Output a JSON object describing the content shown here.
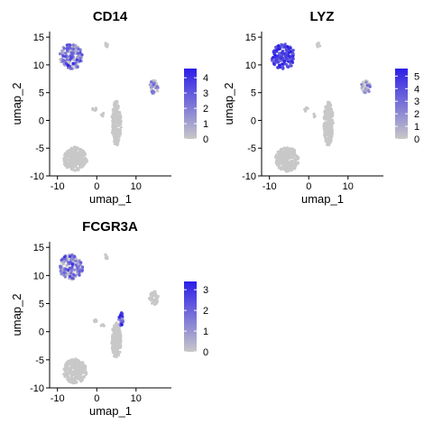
{
  "chart_data": [
    {
      "type": "scatter",
      "title": "CD14",
      "xlabel": "umap_1",
      "ylabel": "umap_2",
      "xlim": [
        -12,
        19
      ],
      "ylim": [
        -10,
        16
      ],
      "x_ticks": [
        -10,
        0,
        10
      ],
      "x_tick_labels": [
        "-10",
        "0",
        "10"
      ],
      "y_ticks": [
        -10,
        -5,
        0,
        5,
        10,
        15
      ],
      "y_tick_labels": [
        "-10",
        "-5",
        "0",
        "5",
        "10",
        "15"
      ],
      "color_scale": {
        "low": "#c8c8c8",
        "high": "#2b1ee8",
        "min": 0,
        "max": 4.6
      },
      "legend": {
        "position": "right",
        "ticks": [
          0,
          1,
          2,
          3,
          4
        ],
        "labels": [
          "0",
          "1",
          "2",
          "3",
          "4"
        ]
      },
      "clusters": [
        {
          "cx": -6.5,
          "cy": 11.5,
          "rx": 3.0,
          "ry": 2.3,
          "n": 170,
          "expr_mean": 1.8,
          "expr_sd": 1.2,
          "p_expr": 0.8
        },
        {
          "cx": 14.5,
          "cy": 6.0,
          "rx": 1.2,
          "ry": 1.2,
          "n": 40,
          "expr_mean": 1.6,
          "expr_sd": 0.8,
          "p_expr": 0.5
        },
        {
          "cx": 5.0,
          "cy": -0.5,
          "rx": 1.2,
          "ry": 4.0,
          "n": 220,
          "expr_mean": 0,
          "expr_sd": 0,
          "p_expr": 0
        },
        {
          "cx": -5.5,
          "cy": -7.0,
          "rx": 3.0,
          "ry": 2.2,
          "n": 230,
          "expr_mean": 0,
          "expr_sd": 0,
          "p_expr": 0
        },
        {
          "cx": 2.5,
          "cy": 13.5,
          "rx": 0.4,
          "ry": 0.6,
          "n": 6,
          "expr_mean": 0,
          "expr_sd": 0,
          "p_expr": 0
        },
        {
          "cx": -0.5,
          "cy": 2.0,
          "rx": 0.6,
          "ry": 0.4,
          "n": 6,
          "expr_mean": 0,
          "expr_sd": 0,
          "p_expr": 0
        },
        {
          "cx": 1.5,
          "cy": 1.0,
          "rx": 0.4,
          "ry": 0.4,
          "n": 4,
          "expr_mean": 0,
          "expr_sd": 0,
          "p_expr": 0
        }
      ]
    },
    {
      "type": "scatter",
      "title": "LYZ",
      "xlabel": "umap_1",
      "ylabel": "umap_2",
      "xlim": [
        -12,
        19
      ],
      "ylim": [
        -10,
        16
      ],
      "x_ticks": [
        -10,
        0,
        10
      ],
      "x_tick_labels": [
        "-10",
        "0",
        "10"
      ],
      "y_ticks": [
        -10,
        -5,
        0,
        5,
        10,
        15
      ],
      "y_tick_labels": [
        "-10",
        "-5",
        "0",
        "5",
        "10",
        "15"
      ],
      "color_scale": {
        "low": "#c8c8c8",
        "high": "#2b1ee8",
        "min": 0,
        "max": 5.6
      },
      "legend": {
        "position": "right",
        "ticks": [
          0,
          1,
          2,
          3,
          4,
          5
        ],
        "labels": [
          "0",
          "1",
          "2",
          "3",
          "4",
          "5"
        ]
      },
      "clusters": [
        {
          "cx": -6.5,
          "cy": 11.5,
          "rx": 3.0,
          "ry": 2.3,
          "n": 170,
          "expr_mean": 3.8,
          "expr_sd": 1.0,
          "p_expr": 0.98
        },
        {
          "cx": 14.5,
          "cy": 6.0,
          "rx": 1.2,
          "ry": 1.2,
          "n": 40,
          "expr_mean": 1.8,
          "expr_sd": 0.8,
          "p_expr": 0.35
        },
        {
          "cx": 5.0,
          "cy": -0.5,
          "rx": 1.2,
          "ry": 4.0,
          "n": 220,
          "expr_mean": 0,
          "expr_sd": 0,
          "p_expr": 0
        },
        {
          "cx": -5.5,
          "cy": -7.0,
          "rx": 3.0,
          "ry": 2.2,
          "n": 230,
          "expr_mean": 0,
          "expr_sd": 0,
          "p_expr": 0
        },
        {
          "cx": 2.5,
          "cy": 13.5,
          "rx": 0.4,
          "ry": 0.6,
          "n": 6,
          "expr_mean": 0,
          "expr_sd": 0,
          "p_expr": 0
        },
        {
          "cx": -0.5,
          "cy": 2.0,
          "rx": 0.6,
          "ry": 0.4,
          "n": 6,
          "expr_mean": 0,
          "expr_sd": 0,
          "p_expr": 0
        },
        {
          "cx": 1.5,
          "cy": 1.0,
          "rx": 0.4,
          "ry": 0.4,
          "n": 4,
          "expr_mean": 0,
          "expr_sd": 0,
          "p_expr": 0
        }
      ]
    },
    {
      "type": "scatter",
      "title": "FCGR3A",
      "xlabel": "umap_1",
      "ylabel": "umap_2",
      "xlim": [
        -12,
        19
      ],
      "ylim": [
        -10,
        16
      ],
      "x_ticks": [
        -10,
        0,
        10
      ],
      "x_tick_labels": [
        "-10",
        "0",
        "10"
      ],
      "y_ticks": [
        -10,
        -5,
        0,
        5,
        10,
        15
      ],
      "y_tick_labels": [
        "-10",
        "-5",
        "0",
        "5",
        "10",
        "15"
      ],
      "color_scale": {
        "low": "#c8c8c8",
        "high": "#2b1ee8",
        "min": 0,
        "max": 3.4
      },
      "legend": {
        "position": "right",
        "ticks": [
          0,
          1,
          2,
          3
        ],
        "labels": [
          "0",
          "1",
          "2",
          "3"
        ]
      },
      "clusters": [
        {
          "cx": -6.5,
          "cy": 11.5,
          "rx": 3.0,
          "ry": 2.3,
          "n": 170,
          "expr_mean": 1.4,
          "expr_sd": 0.7,
          "p_expr": 0.55
        },
        {
          "cx": 14.5,
          "cy": 6.0,
          "rx": 1.2,
          "ry": 1.2,
          "n": 40,
          "expr_mean": 0,
          "expr_sd": 0,
          "p_expr": 0
        },
        {
          "cx": 6.2,
          "cy": 2.2,
          "rx": 0.6,
          "ry": 1.2,
          "n": 25,
          "expr_mean": 2.2,
          "expr_sd": 0.8,
          "p_expr": 0.85
        },
        {
          "cx": 5.0,
          "cy": -1.5,
          "rx": 1.2,
          "ry": 3.2,
          "n": 200,
          "expr_mean": 0,
          "expr_sd": 0,
          "p_expr": 0
        },
        {
          "cx": -5.5,
          "cy": -7.0,
          "rx": 3.0,
          "ry": 2.2,
          "n": 230,
          "expr_mean": 0,
          "expr_sd": 0,
          "p_expr": 0
        },
        {
          "cx": 2.5,
          "cy": 13.5,
          "rx": 0.4,
          "ry": 0.6,
          "n": 6,
          "expr_mean": 0,
          "expr_sd": 0,
          "p_expr": 0
        },
        {
          "cx": -0.5,
          "cy": 2.0,
          "rx": 0.6,
          "ry": 0.4,
          "n": 6,
          "expr_mean": 0,
          "expr_sd": 0,
          "p_expr": 0
        },
        {
          "cx": 1.5,
          "cy": 1.0,
          "rx": 0.4,
          "ry": 0.4,
          "n": 4,
          "expr_mean": 0,
          "expr_sd": 0,
          "p_expr": 0
        }
      ]
    }
  ]
}
